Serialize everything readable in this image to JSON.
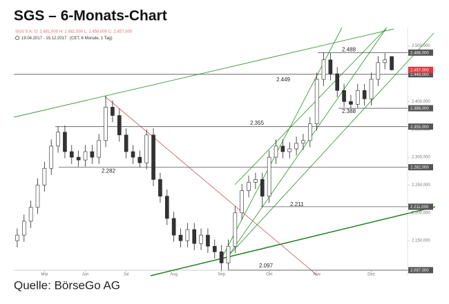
{
  "chart_data": {
    "type": "candlestick",
    "title": "SGS – 6-Monats-Chart",
    "info": "SGS S.A.  O: 2.481,000  H: 2.481,000  L: 2.456,000  C: 2.457,000",
    "period": "19.04.2017 - 15.12.2017",
    "period_note": "(CET, 6 Monate, 1 Tag)",
    "source": "Quelle: BörseGo AG",
    "ylim": [
      2087,
      2533
    ],
    "yticks": [
      {
        "value": 2150,
        "label": "2.150,000"
      },
      {
        "value": 2200,
        "label": "2.200,000"
      },
      {
        "value": 2250,
        "label": "2.250,000"
      },
      {
        "value": 2300,
        "label": "2.300,000"
      },
      {
        "value": 2350,
        "label": "2.350,000"
      },
      {
        "value": 2400,
        "label": "2.400,000"
      },
      {
        "value": 2450,
        "label": "2.450,000"
      },
      {
        "value": 2500,
        "label": "2.500,000"
      }
    ],
    "xlim": [
      -0.5,
      55.5
    ],
    "xticks": [
      {
        "value": 4,
        "label": "Mai"
      },
      {
        "value": 10,
        "label": "Jun"
      },
      {
        "value": 16,
        "label": "Jul"
      },
      {
        "value": 23,
        "label": "Aug"
      },
      {
        "value": 30,
        "label": "Sep"
      },
      {
        "value": 37,
        "label": "Okt"
      },
      {
        "value": 44,
        "label": "Nov"
      },
      {
        "value": 52,
        "label": "Dez"
      }
    ],
    "open": [
      2150,
      2160,
      2185,
      2210,
      2250,
      2280,
      2320,
      2345,
      2310,
      2300,
      2295,
      2310,
      2300,
      2330,
      2390,
      2375,
      2340,
      2310,
      2300,
      2290,
      2340,
      2260,
      2230,
      2190,
      2160,
      2150,
      2170,
      2145,
      2160,
      2140,
      2130,
      2110,
      2140,
      2200,
      2240,
      2255,
      2260,
      2230,
      2300,
      2320,
      2310,
      2315,
      2325,
      2330,
      2360,
      2440,
      2475,
      2450,
      2420,
      2400,
      2395,
      2420,
      2405,
      2440,
      2470,
      2481
    ],
    "high": [
      2172,
      2197,
      2222,
      2262,
      2292,
      2332,
      2355,
      2357,
      2322,
      2312,
      2322,
      2322,
      2342,
      2410,
      2402,
      2387,
      2352,
      2322,
      2312,
      2350,
      2352,
      2272,
      2242,
      2202,
      2172,
      2182,
      2182,
      2172,
      2172,
      2152,
      2142,
      2152,
      2212,
      2252,
      2267,
      2272,
      2272,
      2312,
      2332,
      2332,
      2327,
      2337,
      2342,
      2372,
      2452,
      2488,
      2487,
      2462,
      2432,
      2412,
      2432,
      2432,
      2452,
      2482,
      2487,
      2481
    ],
    "low": [
      2138,
      2148,
      2173,
      2198,
      2238,
      2268,
      2308,
      2298,
      2288,
      2283,
      2283,
      2288,
      2288,
      2318,
      2363,
      2328,
      2298,
      2288,
      2282,
      2278,
      2248,
      2218,
      2178,
      2148,
      2138,
      2138,
      2133,
      2133,
      2128,
      2118,
      2097,
      2098,
      2128,
      2188,
      2228,
      2243,
      2211,
      2218,
      2288,
      2298,
      2298,
      2303,
      2313,
      2318,
      2348,
      2428,
      2438,
      2408,
      2390,
      2388,
      2389,
      2393,
      2393,
      2428,
      2458,
      2456
    ],
    "close": [
      2160,
      2185,
      2210,
      2250,
      2280,
      2320,
      2345,
      2310,
      2300,
      2295,
      2310,
      2300,
      2330,
      2390,
      2375,
      2340,
      2310,
      2300,
      2290,
      2340,
      2260,
      2230,
      2190,
      2160,
      2150,
      2170,
      2145,
      2160,
      2140,
      2130,
      2110,
      2140,
      2200,
      2240,
      2255,
      2260,
      2230,
      2300,
      2320,
      2310,
      2315,
      2325,
      2330,
      2360,
      2440,
      2475,
      2450,
      2420,
      2400,
      2395,
      2420,
      2405,
      2440,
      2470,
      2475,
      2457
    ],
    "levels": [
      {
        "value": 2488,
        "label": "2.488",
        "box": "2.488,000"
      },
      {
        "value": 2449,
        "label": "2.449",
        "box": "2.449,000"
      },
      {
        "value": 2388,
        "label": "2.388",
        "box": "2.388,000"
      },
      {
        "value": 2355,
        "label": "2.355",
        "box": "2.355,000"
      },
      {
        "value": 2282,
        "label": "2.282",
        "box": "2.282,000"
      },
      {
        "value": 2211,
        "label": "2.211",
        "box": "2.211,000"
      },
      {
        "value": 2097,
        "label": "2.097",
        "box": "2.097,000"
      }
    ],
    "last": {
      "value": 2457,
      "box": "2.457,000",
      "color": "#e0393e"
    }
  }
}
